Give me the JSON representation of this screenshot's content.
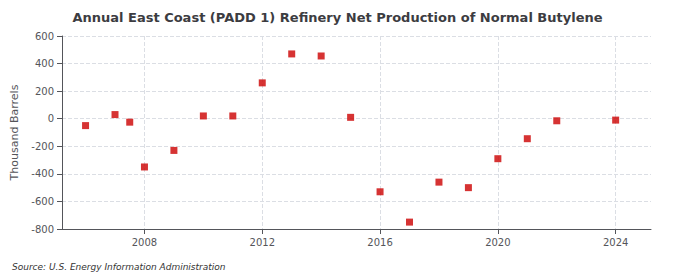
{
  "chart_data": {
    "type": "scatter",
    "title": "Annual East Coast (PADD 1) Refinery Net Production of Normal Butylene",
    "ylabel": "Thousand Barrels",
    "annotation": "Source: U.S. Energy Information Administration",
    "x": [
      2006,
      2007,
      2007.5,
      2008,
      2009,
      2010,
      2011,
      2012,
      2013,
      2014,
      2015,
      2016,
      2017,
      2018,
      2019,
      2020,
      2021,
      2022,
      2024
    ],
    "values": [
      -50,
      30,
      -25,
      -350,
      -230,
      20,
      20,
      260,
      470,
      455,
      10,
      -530,
      -750,
      -460,
      -500,
      -290,
      -145,
      -15,
      -10
    ],
    "color": "#cc0000",
    "marker": "square",
    "xlim": [
      2005.2,
      2025.2
    ],
    "xticks": [
      2008,
      2012,
      2016,
      2020,
      2024
    ],
    "ylim": [
      -800,
      600
    ],
    "yticks": [
      -800,
      -600,
      -400,
      -200,
      0,
      200,
      400,
      600
    ],
    "grid": true
  }
}
